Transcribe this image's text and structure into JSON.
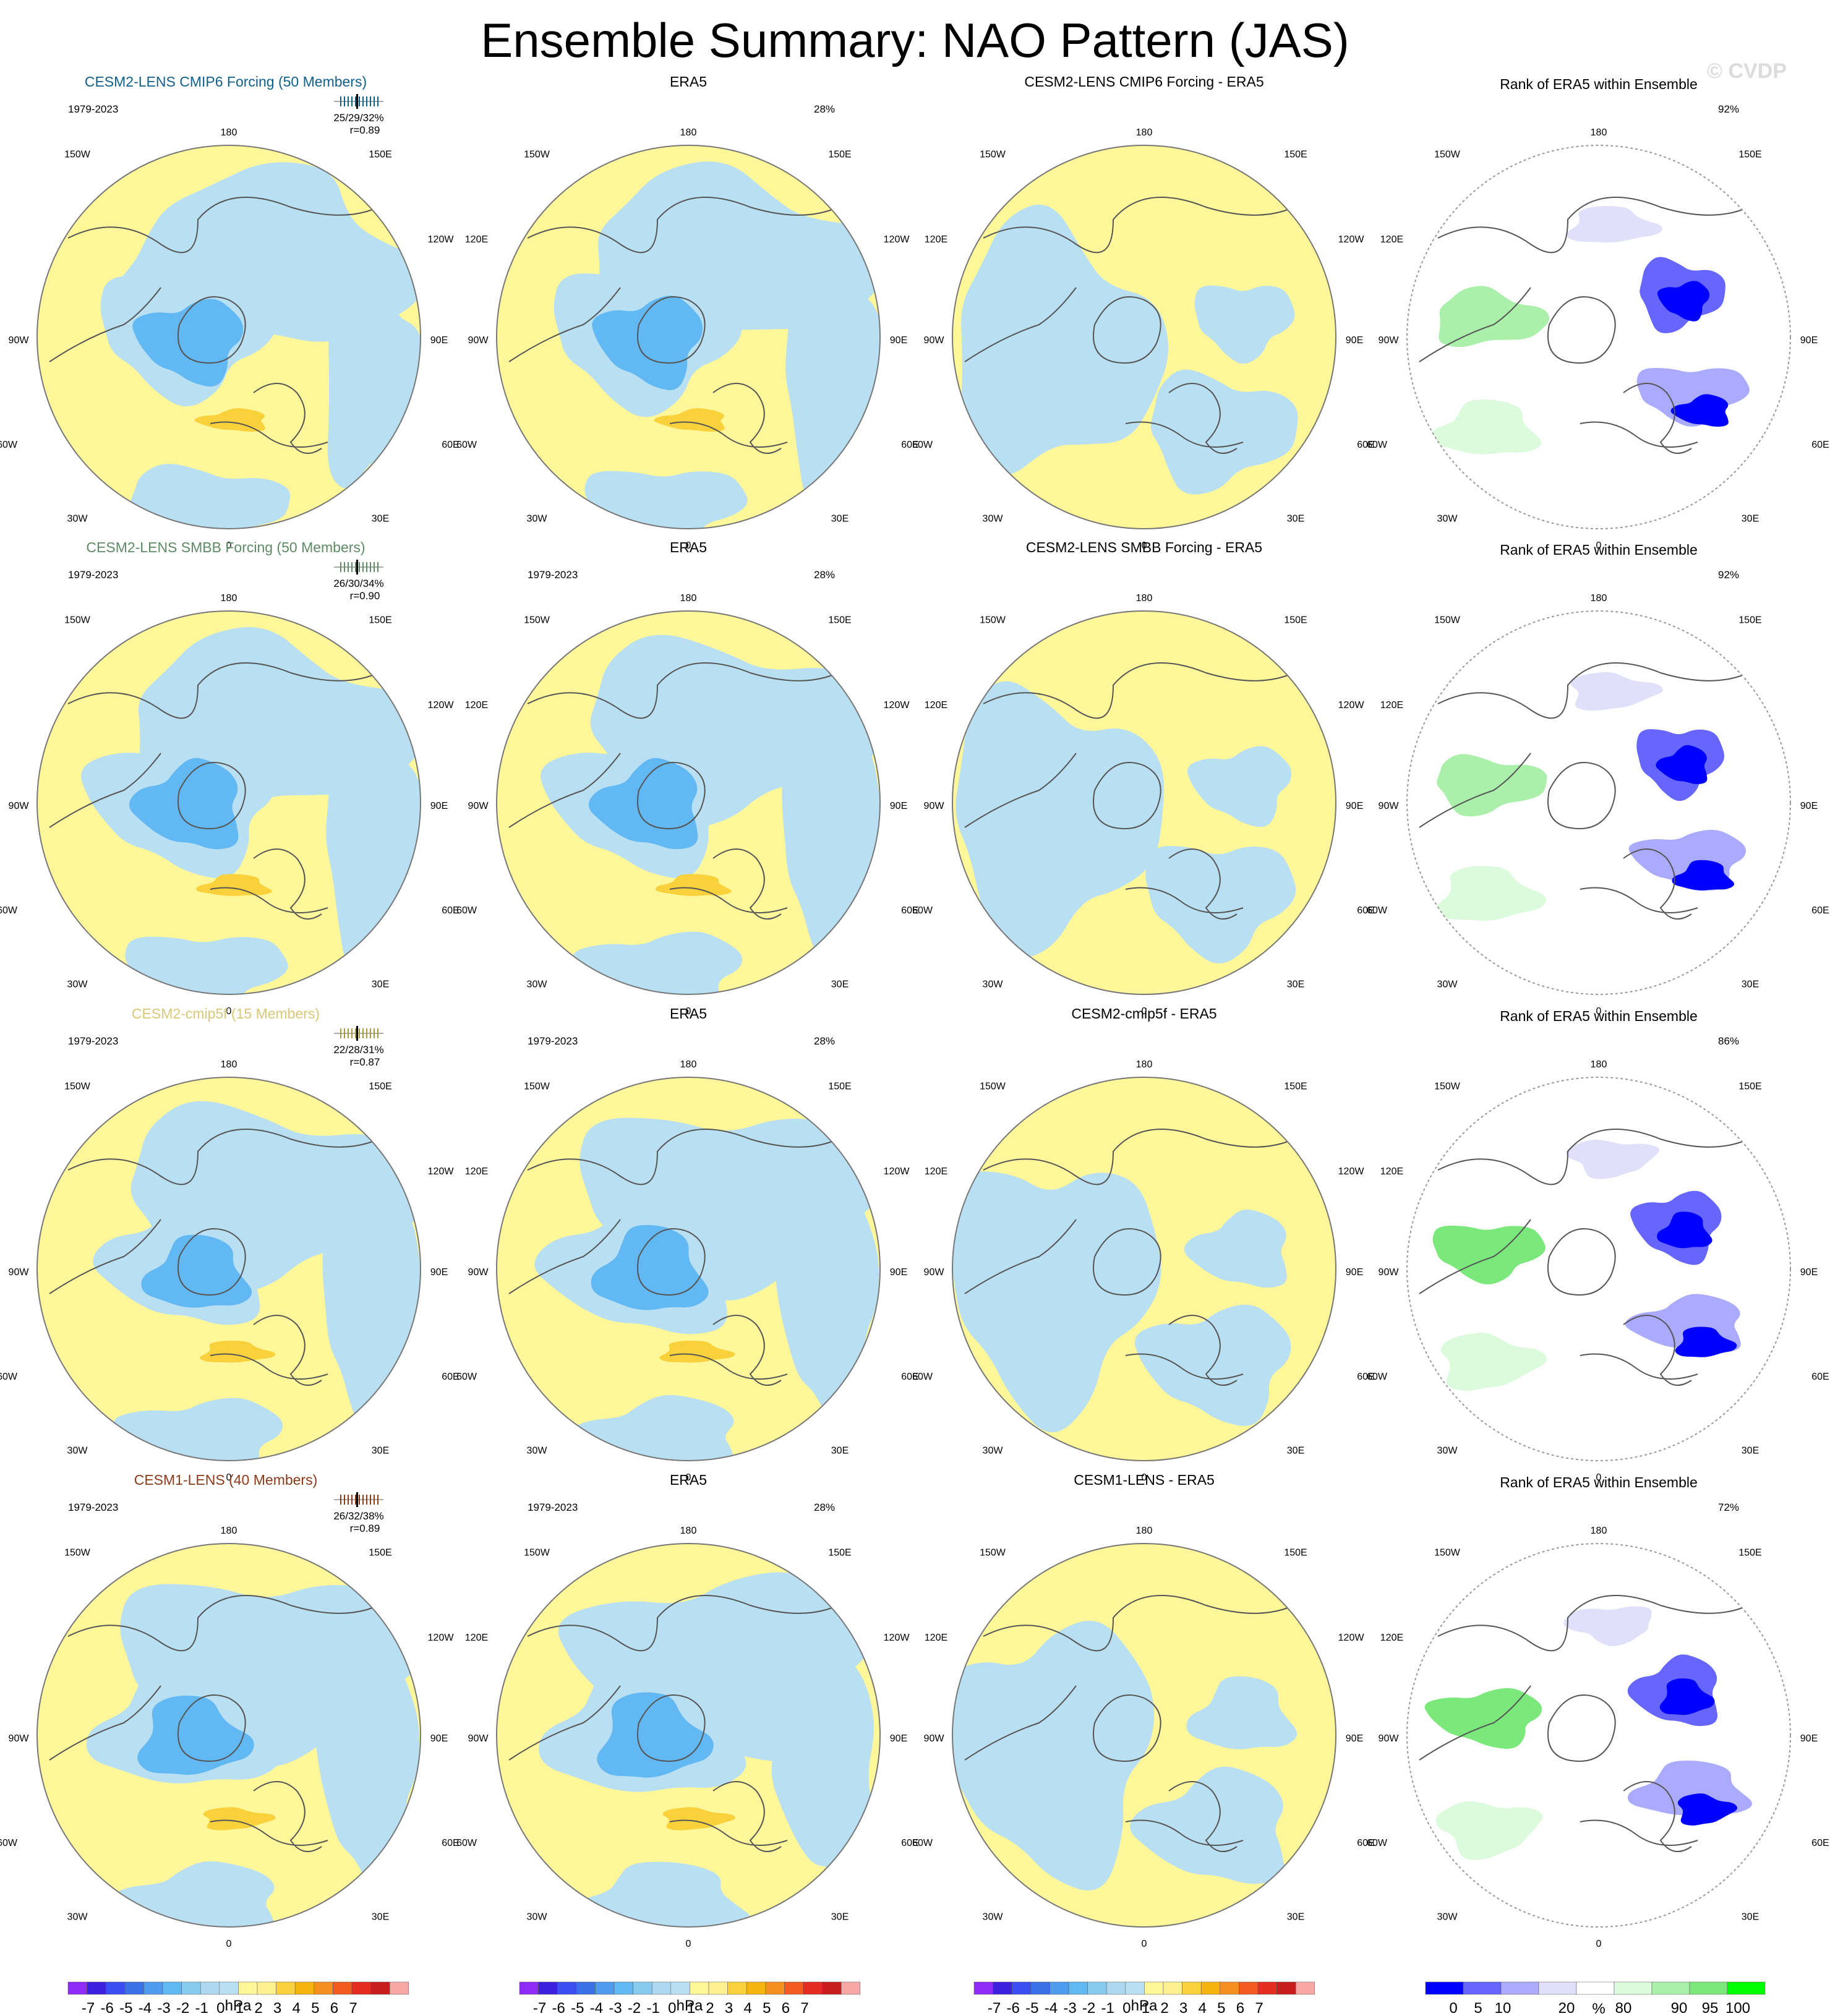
{
  "title": "Ensemble Summary: NAO Pattern (JAS)",
  "watermark": "© CVDP",
  "colors": {
    "scale": [
      "#8e2bf5",
      "#3d1fe0",
      "#3b4ff0",
      "#3a71e6",
      "#4e9bf0",
      "#62b8f2",
      "#85cbf0",
      "#add8ef",
      "#b9dff2",
      "#fff799",
      "#fff191",
      "#f9d13a",
      "#f6b40e",
      "#f58f1f",
      "#f35b20",
      "#e52c20",
      "#c81d1d",
      "#f8a7a7"
    ],
    "rank": [
      "#0000ff",
      "#6666ff",
      "#aaaaff",
      "#e0e0fb",
      "#ffffff",
      "#dcfadc",
      "#aaf0aa",
      "#7ae87a",
      "#00ff00"
    ],
    "light_blue": "#b9dff2",
    "yellow": "#fff799",
    "mid_blue": "#62b8f2",
    "orange": "#f9d13a",
    "coast": "#555555"
  },
  "labels": {
    "era5": "ERA5",
    "rank_title": "Rank of ERA5 within Ensemble",
    "period": "1979-2023",
    "era5_pct": "28%",
    "lon": {
      "n180": "180",
      "w150": "150W",
      "e150": "150E",
      "w120": "120W",
      "e120": "120E",
      "w90": "90W",
      "e90": "90E",
      "w60": "60W",
      "e60": "60E",
      "w30": "30W",
      "e30": "30E",
      "zero": "0"
    }
  },
  "rows": [
    {
      "model": "CESM2-LENS CMIP6 Forcing (50 Members)",
      "model_color": "#11608a",
      "diff_title": "CESM2-LENS CMIP6 Forcing - ERA5",
      "stats": "25/29/32%",
      "r": "r=0.89",
      "rank_pct": "92%",
      "bar_color": "#11608a"
    },
    {
      "model": "CESM2-LENS SMBB Forcing (50 Members)",
      "model_color": "#5e8a66",
      "diff_title": "CESM2-LENS SMBB Forcing - ERA5",
      "stats": "26/30/34%",
      "r": "r=0.90",
      "rank_pct": "92%",
      "bar_color": "#5e8a66"
    },
    {
      "model": "CESM2-cmip5f (15 Members)",
      "model_color": "#d9c878",
      "diff_title": "CESM2-cmip5f - ERA5",
      "stats": "22/28/31%",
      "r": "r=0.87",
      "rank_pct": "86%",
      "bar_color": "#a89a3c"
    },
    {
      "model": "CESM1-LENS (40 Members)",
      "model_color": "#8b3a1a",
      "diff_title": "CESM1-LENS - ERA5",
      "stats": "26/32/38%",
      "r": "r=0.89",
      "rank_pct": "72%",
      "bar_color": "#8b3a1a"
    }
  ],
  "hpa_legend": {
    "ticks": [
      "-7",
      "-6",
      "-5",
      "-4",
      "-3",
      "-2",
      "-1",
      "0",
      "1",
      "2",
      "3",
      "4",
      "5",
      "6",
      "7"
    ],
    "unit": "hPa"
  },
  "rank_legend": {
    "ticks": [
      "0",
      "5",
      "10",
      "20",
      "80",
      "90",
      "95",
      "100"
    ],
    "unit": "%"
  }
}
